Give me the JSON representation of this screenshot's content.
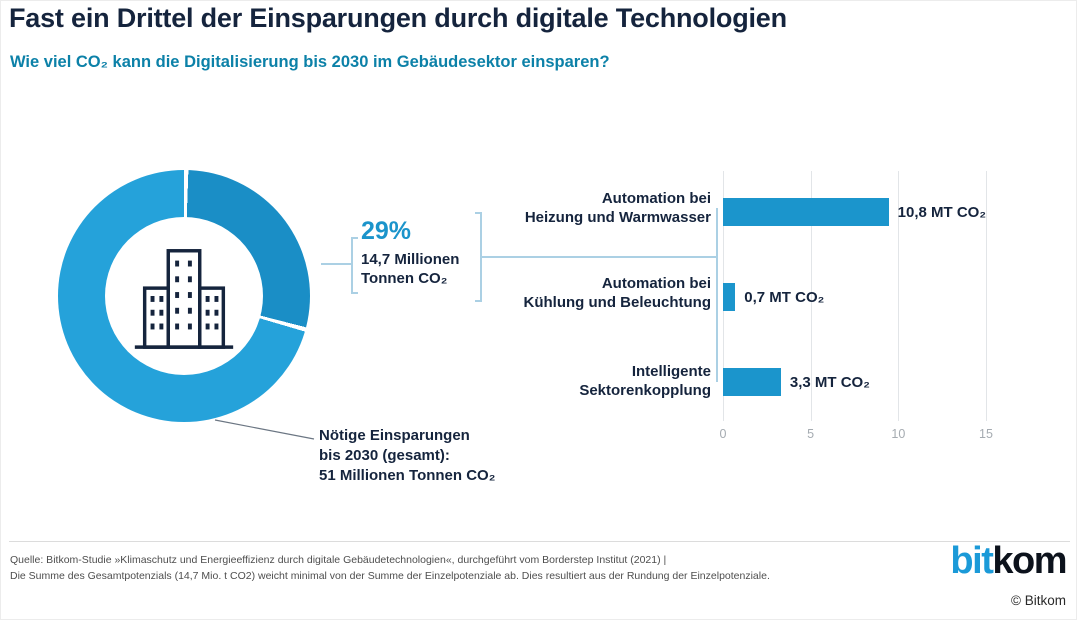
{
  "header": {
    "title": "Fast ein Drittel der Einsparungen durch digitale Technologien",
    "subtitle": "Wie viel CO₂ kann die Digitalisierung bis 2030 im Gebäudesektor einsparen?"
  },
  "donut": {
    "percent_label": "29%",
    "amount_line1": "14,7 Millionen",
    "amount_line2": "Tonnen CO₂",
    "total_line1": "Nötige Einsparungen",
    "total_line2": "bis 2030 (gesamt):",
    "total_line3": "51 Millionen Tonnen CO₂"
  },
  "chart_data": [
    {
      "type": "pie",
      "subtype": "donut",
      "values": [
        29,
        71
      ],
      "unit": "percent",
      "highlight_label": "29%",
      "highlight_detail": "14,7 Millionen Tonnen CO₂",
      "total_annotation": "Nötige Einsparungen bis 2030 (gesamt): 51 Millionen Tonnen CO₂"
    },
    {
      "type": "bar",
      "orientation": "horizontal",
      "categories": [
        "Automation bei Heizung und Warmwasser",
        "Automation bei Kühlung und Beleuchtung",
        "Intelligente Sektorenkopplung"
      ],
      "label_lines": [
        [
          "Automation bei",
          "Heizung und Warmwasser"
        ],
        [
          "Automation bei",
          "Kühlung und Beleuchtung"
        ],
        [
          "Intelligente",
          "Sektorenkopplung"
        ]
      ],
      "values": [
        10.8,
        0.7,
        3.3
      ],
      "value_labels": [
        "10,8 MT CO₂",
        "0,7 MT CO₂",
        "3,3 MT CO₂"
      ],
      "x_ticks": [
        "0",
        "5",
        "10",
        "15"
      ],
      "xlim": [
        0,
        15
      ],
      "grid": true,
      "legend": "none"
    }
  ],
  "footer": {
    "source_line1": "Quelle: Bitkom-Studie »Klimaschutz und Energieeffizienz durch digitale Gebäudetechnologien«, durchgeführt vom Borderstep Institut (2021) |",
    "source_line2": "Die Summe des Gesamtpotenzials (14,7 Mio. t CO2) weicht minimal von der Summe der Einzelpotenziale ab. Dies resultiert aus der Rundung der Einzelpotenziale.",
    "logo_bit": "bit",
    "logo_kom": "kom",
    "copyright": "© Bitkom"
  },
  "colors": {
    "title": "#15243d",
    "subtitle": "#0c81a8",
    "accent_blue": "#1b94cb",
    "donut_segment": "#1a8ec6",
    "donut_rest": "#25a2da",
    "bar": "#1b95cc",
    "grid": "#e2e5e8",
    "connector": "#abd0e4",
    "logo_blue": "#1b9ad8",
    "logo_dark": "#0c121c"
  }
}
